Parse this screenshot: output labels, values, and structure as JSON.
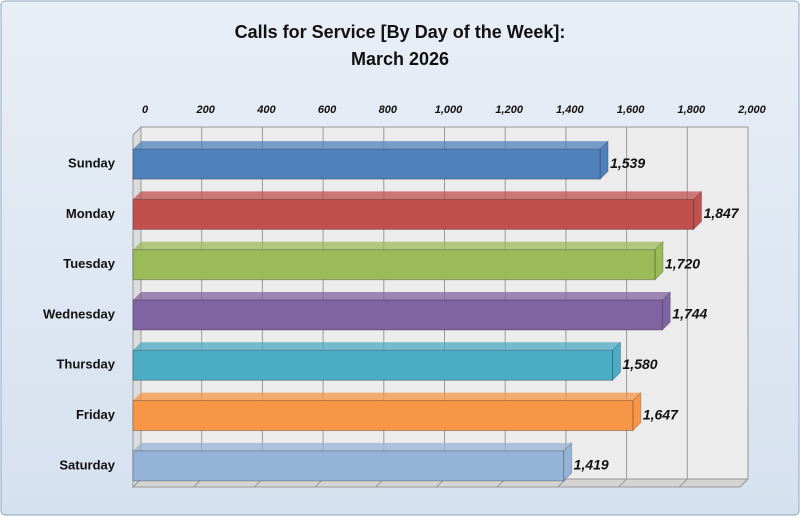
{
  "chart_data": {
    "type": "bar",
    "orientation": "horizontal",
    "title": [
      "Calls for Service [By Day of the Week]:",
      "March 2026"
    ],
    "categories": [
      "Sunday",
      "Monday",
      "Tuesday",
      "Wednesday",
      "Thursday",
      "Friday",
      "Saturday"
    ],
    "values": [
      1539,
      1847,
      1720,
      1744,
      1580,
      1647,
      1419
    ],
    "value_labels": [
      "1,539",
      "1,847",
      "1,720",
      "1,744",
      "1,580",
      "1,647",
      "1,419"
    ],
    "colors": [
      "#4f81bd",
      "#c0504d",
      "#9bbb59",
      "#8064a2",
      "#4bacc6",
      "#f79646",
      "#95b3d7"
    ],
    "xlim": [
      0,
      2000
    ],
    "xticks": [
      0,
      200,
      400,
      600,
      800,
      {
        "value": 1000,
        "label": "1,000"
      },
      {
        "value": 1200,
        "label": "1,200"
      },
      {
        "value": 1400,
        "label": "1,400"
      },
      {
        "value": 1600,
        "label": "1,600"
      },
      {
        "value": 1800,
        "label": "1,800"
      },
      {
        "value": 2000,
        "label": "2,000"
      }
    ],
    "grid": true
  }
}
